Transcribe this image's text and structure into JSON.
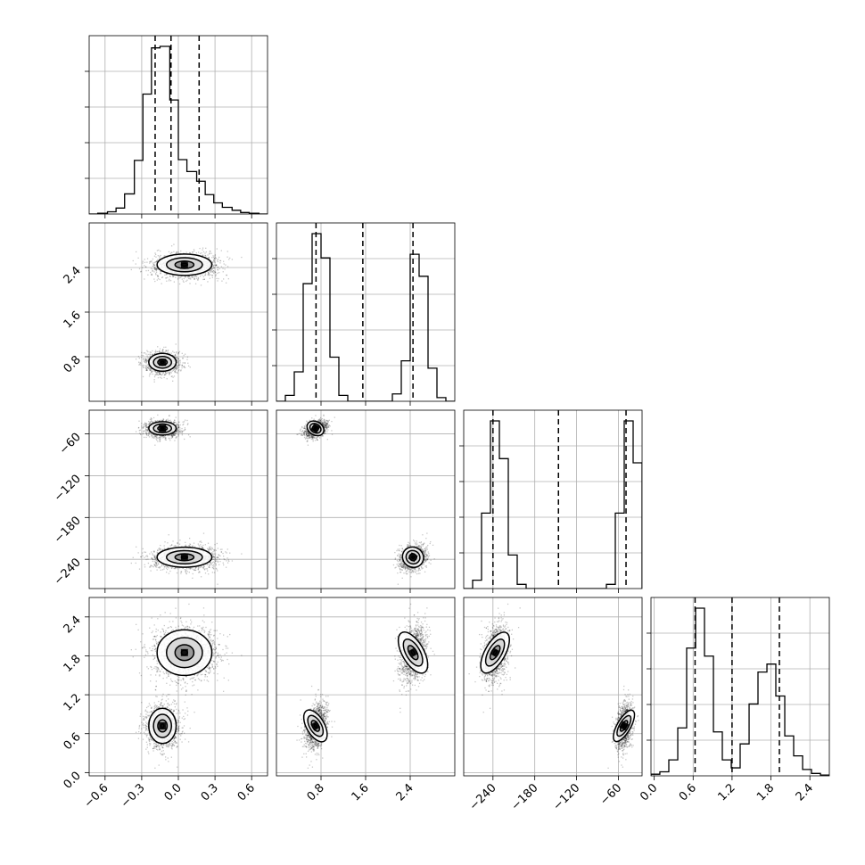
{
  "chart_data": {
    "type": "corner",
    "grid": true,
    "parameters": [
      {
        "ticks": [
          -0.6,
          -0.3,
          0.0,
          0.3,
          0.6
        ],
        "tick_labels": [
          "−0.6",
          "−0.3",
          "0.0",
          "0.3",
          "0.6"
        ],
        "range": [
          -0.73,
          0.73
        ]
      },
      {
        "ticks": [
          0.8,
          1.6,
          2.4
        ],
        "tick_labels": [
          "0.8",
          "1.6",
          "2.4"
        ],
        "range": [
          0.0,
          3.2
        ]
      },
      {
        "ticks": [
          -240,
          -180,
          -120,
          -60
        ],
        "tick_labels": [
          "−240",
          "−180",
          "−120",
          "−60"
        ],
        "range": [
          -282,
          -26
        ]
      },
      {
        "ticks": [
          0.0,
          0.6,
          1.2,
          1.8,
          2.4
        ],
        "tick_labels": [
          "0.0",
          "0.6",
          "1.2",
          "1.8",
          "2.4"
        ],
        "range": [
          -0.05,
          2.7
        ]
      }
    ],
    "marginals": [
      {
        "quantiles": [
          -0.19,
          -0.06,
          0.17
        ],
        "bin_edges": [
          -0.73,
          -0.66,
          -0.58,
          -0.51,
          -0.44,
          -0.36,
          -0.29,
          -0.22,
          -0.15,
          -0.07,
          0.0,
          0.07,
          0.15,
          0.22,
          0.29,
          0.36,
          0.44,
          0.51,
          0.58,
          0.66,
          0.73
        ],
        "counts": [
          0,
          1,
          3,
          8,
          27,
          72,
          161,
          223,
          225,
          153,
          73,
          57,
          44,
          26,
          15,
          9,
          5,
          2,
          1,
          0
        ]
      },
      {
        "quantiles": [
          0.71,
          1.55,
          2.45
        ],
        "bin_edges": [
          0.0,
          0.16,
          0.32,
          0.48,
          0.64,
          0.8,
          0.96,
          1.12,
          1.28,
          1.44,
          1.6,
          1.76,
          1.92,
          2.08,
          2.24,
          2.4,
          2.56,
          2.72,
          2.88,
          3.04,
          3.2
        ],
        "counts": [
          0,
          8,
          40,
          160,
          228,
          195,
          60,
          8,
          0,
          0,
          0,
          0,
          0,
          10,
          55,
          200,
          170,
          45,
          5,
          0
        ]
      },
      {
        "quantiles": [
          -240,
          -146,
          -49
        ],
        "bin_edges": [
          -282,
          -269.2,
          -256.4,
          -243.6,
          -230.8,
          -218,
          -205.2,
          -192.4,
          -179.6,
          -166.8,
          -154,
          -141.2,
          -128.4,
          -115.6,
          -102.8,
          -90,
          -77.2,
          -64.4,
          -51.6,
          -38.8,
          -26
        ],
        "counts": [
          0,
          10,
          90,
          200,
          155,
          40,
          5,
          0,
          0,
          0,
          0,
          0,
          0,
          0,
          0,
          0,
          5,
          90,
          200,
          150
        ]
      },
      {
        "quantiles": [
          0.63,
          1.2,
          1.93
        ],
        "bin_edges": [
          -0.05,
          0.087,
          0.225,
          0.363,
          0.5,
          0.638,
          0.775,
          0.913,
          1.05,
          1.188,
          1.325,
          1.463,
          1.6,
          1.738,
          1.875,
          2.013,
          2.15,
          2.288,
          2.425,
          2.563,
          2.7
        ],
        "counts": [
          2,
          5,
          20,
          60,
          160,
          210,
          150,
          55,
          20,
          10,
          40,
          90,
          130,
          140,
          100,
          50,
          25,
          8,
          3,
          1
        ]
      }
    ],
    "modes": [
      {
        "weight": 0.5,
        "mean": [
          -0.13,
          0.7,
          -52,
          0.72
        ],
        "sd": [
          0.07,
          0.1,
          6,
          0.17
        ]
      },
      {
        "weight": 0.5,
        "mean": [
          0.05,
          2.45,
          -237,
          1.85
        ],
        "sd": [
          0.14,
          0.12,
          9,
          0.22
        ]
      }
    ]
  }
}
